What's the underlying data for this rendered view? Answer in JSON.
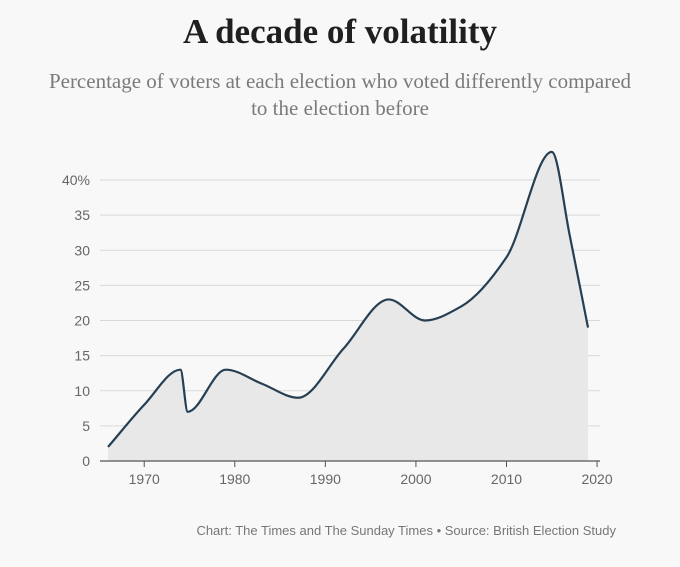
{
  "header": {
    "title": "A decade of volatility",
    "subtitle": "Percentage of voters at each election who voted differently compared to the election before"
  },
  "footer": {
    "source": "Chart: The Times and The Sunday Times • Source: British Election Study"
  },
  "colors": {
    "line": "#263f52",
    "area": "#e8e8e8",
    "grid": "#d9d9d9",
    "axis": "#555555"
  },
  "chart_data": {
    "type": "area",
    "x": [
      1966,
      1970,
      1974,
      1974.8,
      1979,
      1983,
      1987,
      1992,
      1997,
      2001,
      2005,
      2010,
      2015,
      2017,
      2019
    ],
    "series": [
      {
        "values": [
          2,
          8,
          13,
          7,
          13,
          11,
          9,
          16,
          23,
          20,
          22,
          29,
          44,
          32,
          19
        ]
      }
    ],
    "xticks": [
      1970,
      1980,
      1990,
      2000,
      2010,
      2020
    ],
    "xtick_labels": [
      "1970",
      "1980",
      "1990",
      "2000",
      "2010",
      "2020"
    ],
    "yticks": [
      0,
      5,
      10,
      15,
      20,
      25,
      30,
      35,
      40
    ],
    "ytick_labels": [
      "0",
      "5",
      "10",
      "15",
      "20",
      "25",
      "30",
      "35",
      "40%"
    ],
    "xlim": [
      1963.5,
      2020
    ],
    "ylim": [
      0,
      40
    ],
    "grid": true
  }
}
